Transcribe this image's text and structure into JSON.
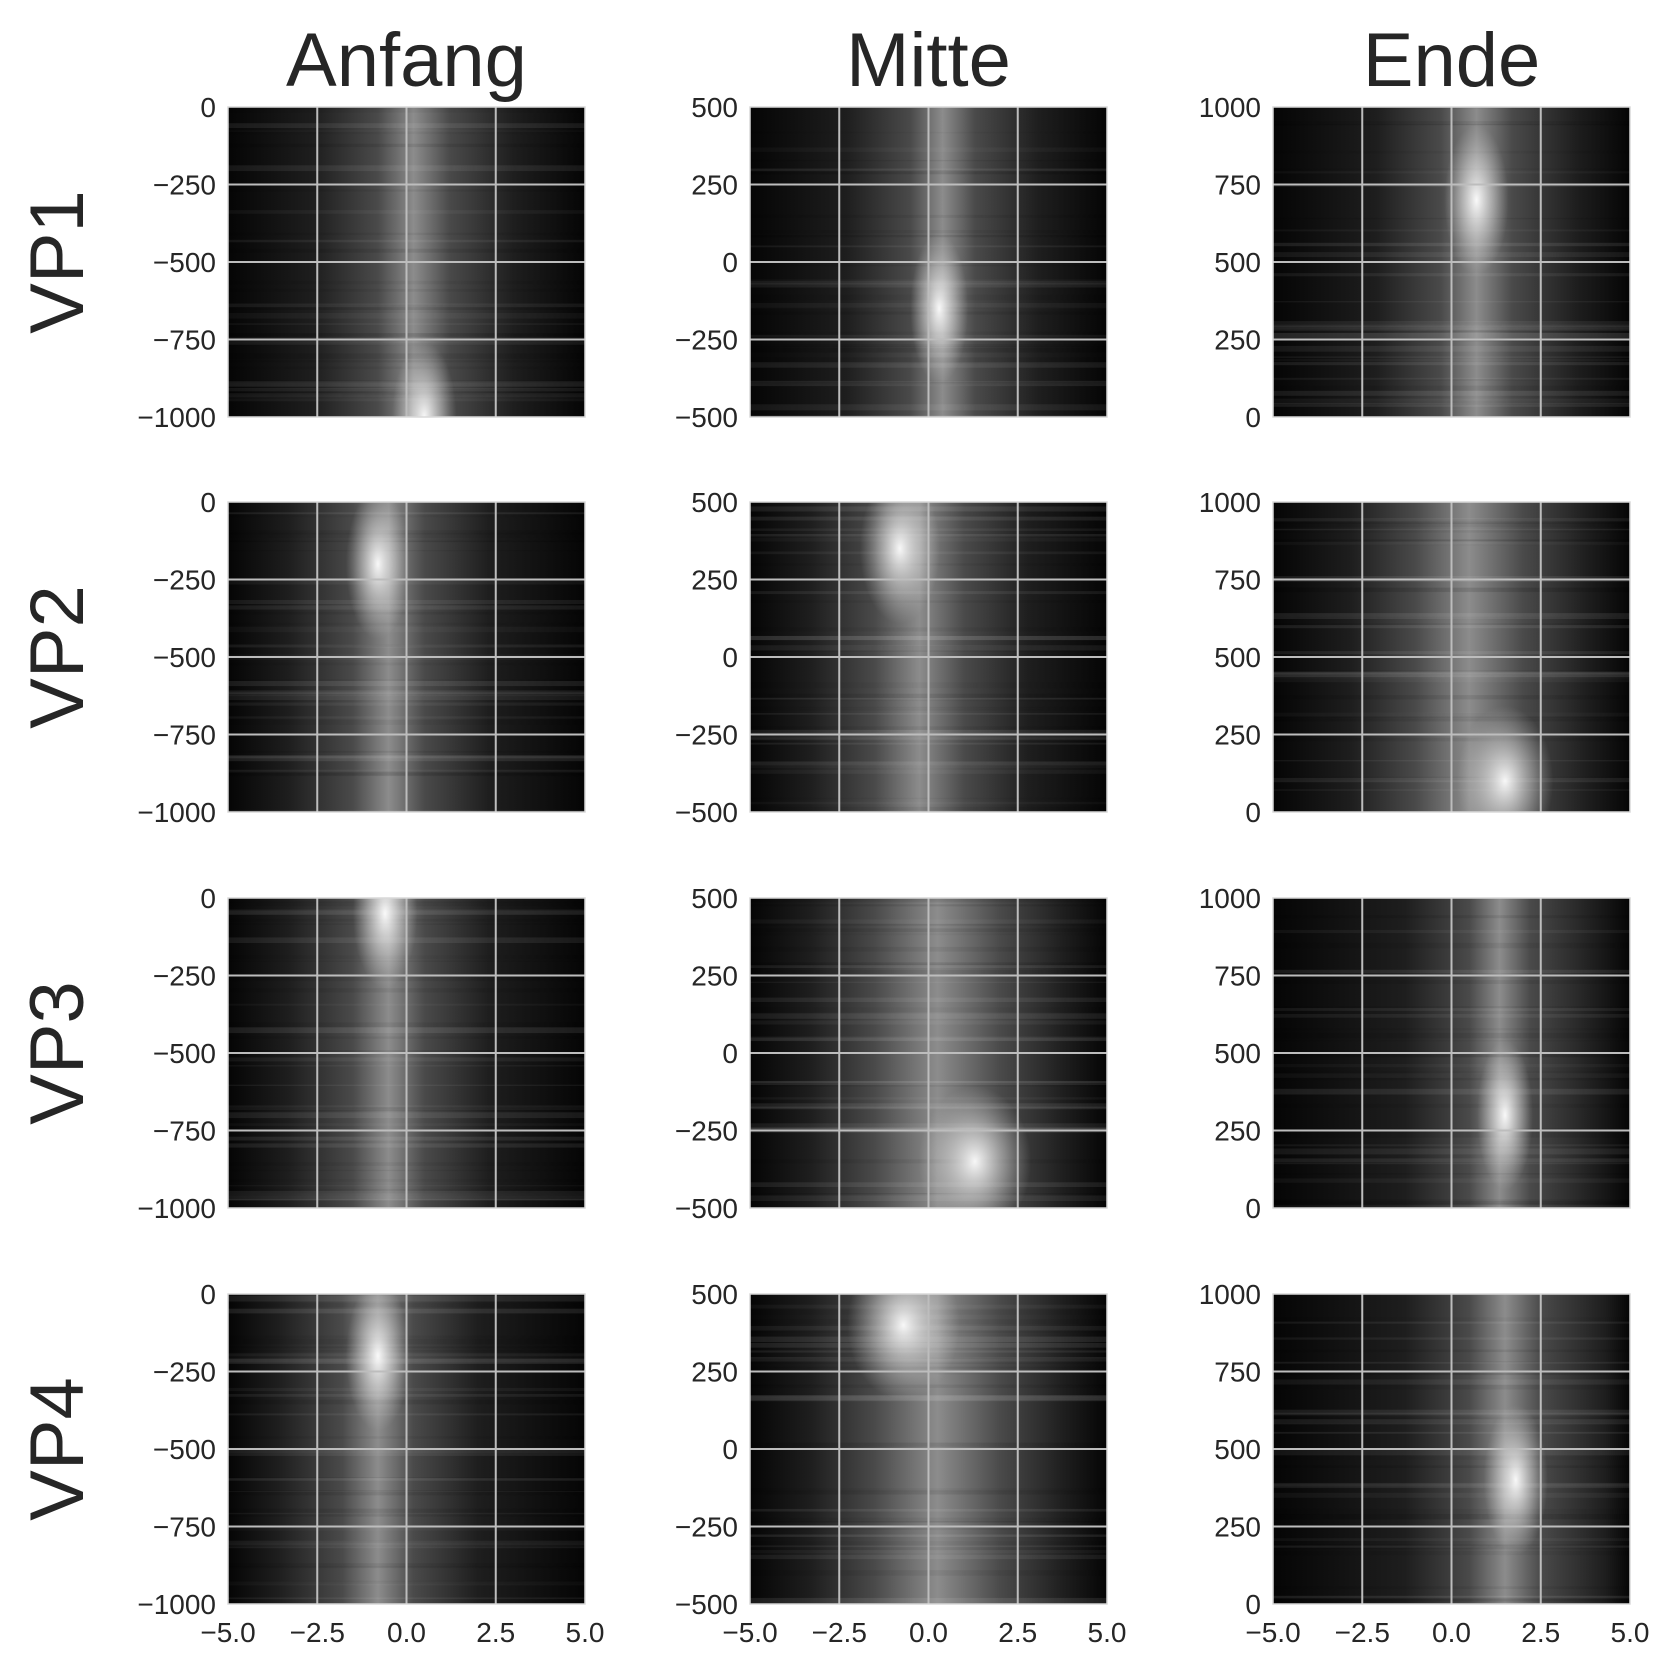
{
  "chart_data": {
    "type": "heatmap",
    "layout": "4x3 small multiples",
    "column_titles": [
      "Anfang",
      "Mitte",
      "Ende"
    ],
    "row_titles": [
      "VP1",
      "VP2",
      "VP3",
      "VP4"
    ],
    "colormap": "grayscale (black = low, white = high)",
    "grid": true,
    "x_axis": {
      "range": [
        -5.0,
        5.0
      ],
      "ticks": [
        -5.0,
        -2.5,
        0.0,
        2.5,
        5.0
      ],
      "tick_labels": [
        "−5.0",
        "−2.5",
        "0.0",
        "2.5",
        "5.0"
      ],
      "shown_on_bottom_row_only": true
    },
    "y_axes": [
      {
        "column": "Anfang",
        "range": [
          -1000,
          0
        ],
        "ticks": [
          0,
          -250,
          -500,
          -750,
          -1000
        ],
        "tick_labels": [
          "0",
          "−250",
          "−500",
          "−750",
          "−1000"
        ]
      },
      {
        "column": "Mitte",
        "range": [
          -500,
          500
        ],
        "ticks": [
          500,
          250,
          0,
          -250,
          -500
        ],
        "tick_labels": [
          "500",
          "250",
          "0",
          "−250",
          "−500"
        ]
      },
      {
        "column": "Ende",
        "range": [
          0,
          1000
        ],
        "ticks": [
          1000,
          750,
          500,
          250,
          0
        ],
        "tick_labels": [
          "1000",
          "750",
          "500",
          "250",
          "0"
        ]
      }
    ],
    "panels": [
      {
        "row": "VP1",
        "column": "Anfang",
        "bright_band_x": [
          -0.8,
          1.2
        ],
        "peak": {
          "x": 0.5,
          "y": -1000
        }
      },
      {
        "row": "VP1",
        "column": "Mitte",
        "bright_band_x": [
          -0.5,
          1.3
        ],
        "peak": {
          "x": 0.3,
          "y": -150
        }
      },
      {
        "row": "VP1",
        "column": "Ende",
        "bright_band_x": [
          -0.3,
          1.7
        ],
        "peak": {
          "x": 0.7,
          "y": 700
        }
      },
      {
        "row": "VP2",
        "column": "Anfang",
        "bright_band_x": [
          -1.5,
          0.5
        ],
        "peak": {
          "x": -0.8,
          "y": -200
        }
      },
      {
        "row": "VP2",
        "column": "Mitte",
        "bright_band_x": [
          -1.5,
          1.0
        ],
        "peak": {
          "x": -0.8,
          "y": 350
        }
      },
      {
        "row": "VP2",
        "column": "Ende",
        "bright_band_x": [
          -1.0,
          2.0
        ],
        "peak": {
          "x": 1.5,
          "y": 100
        }
      },
      {
        "row": "VP3",
        "column": "Anfang",
        "bright_band_x": [
          -1.5,
          0.5
        ],
        "peak": {
          "x": -0.6,
          "y": -50
        }
      },
      {
        "row": "VP3",
        "column": "Mitte",
        "bright_band_x": [
          -1.5,
          2.0
        ],
        "peak": {
          "x": 1.3,
          "y": -350
        }
      },
      {
        "row": "VP3",
        "column": "Ende",
        "bright_band_x": [
          0.5,
          2.2
        ],
        "peak": {
          "x": 1.5,
          "y": 300
        }
      },
      {
        "row": "VP4",
        "column": "Anfang",
        "bright_band_x": [
          -1.8,
          0.2
        ],
        "peak": {
          "x": -0.8,
          "y": -200
        }
      },
      {
        "row": "VP4",
        "column": "Mitte",
        "bright_band_x": [
          -1.5,
          2.0
        ],
        "peak": {
          "x": -0.7,
          "y": 400
        }
      },
      {
        "row": "VP4",
        "column": "Ende",
        "bright_band_x": [
          0.5,
          2.5
        ],
        "peak": {
          "x": 1.8,
          "y": 400
        }
      }
    ]
  }
}
